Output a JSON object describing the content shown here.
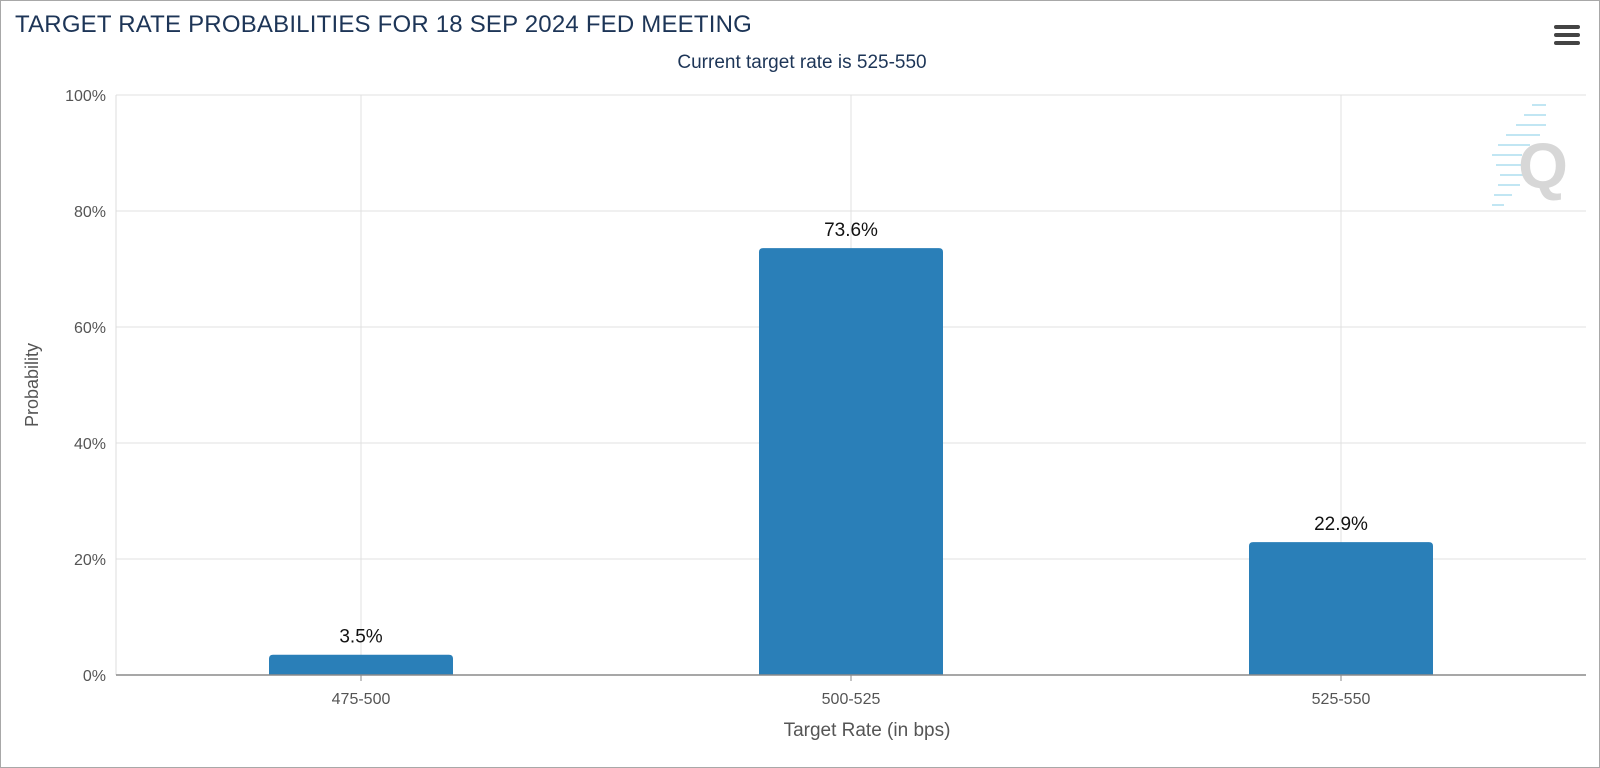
{
  "chart_data": {
    "type": "bar",
    "title": "TARGET RATE PROBABILITIES FOR 18 SEP 2024 FED MEETING",
    "subtitle": "Current target rate is 525-550",
    "xlabel": "Target Rate (in bps)",
    "ylabel": "Probability",
    "categories": [
      "475-500",
      "500-525",
      "525-550"
    ],
    "values": [
      3.5,
      73.6,
      22.9
    ],
    "value_labels": [
      "3.5%",
      "73.6%",
      "22.9%"
    ],
    "ylim": [
      0,
      100
    ],
    "yticks": [
      0,
      20,
      40,
      60,
      80,
      100
    ],
    "ytick_labels": [
      "0%",
      "20%",
      "40%",
      "60%",
      "80%",
      "100%"
    ],
    "grid": true,
    "bar_color": "#2a7fb8",
    "legend": "none"
  },
  "toolbar": {
    "menu_icon": "hamburger-menu-icon"
  },
  "watermark": {
    "icon": "q-logo-watermark"
  }
}
